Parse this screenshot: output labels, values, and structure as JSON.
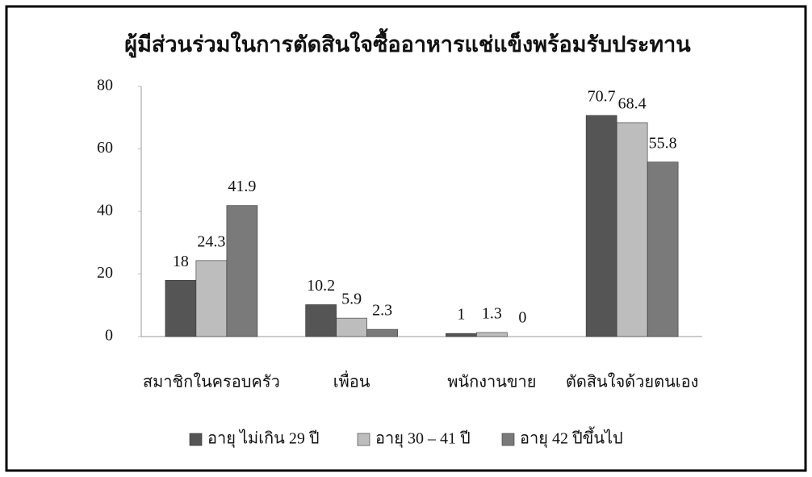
{
  "chart_data": {
    "type": "bar",
    "title": "ผู้มีส่วนร่วมในการตัดสินใจซื้ออาหารแช่แข็งพร้อมรับประทาน",
    "categories": [
      "สมาชิกในครอบครัว",
      "เพื่อน",
      "พนักงานขาย",
      "ตัดสินใจด้วยตนเอง"
    ],
    "series": [
      {
        "name": "อายุ ไม่เกิน 29 ปี",
        "color": "#555555",
        "values": [
          18,
          10.2,
          1,
          70.7
        ]
      },
      {
        "name": "อายุ 30 – 41 ปี",
        "color": "#bdbdbd",
        "values": [
          24.3,
          5.9,
          1.3,
          68.4
        ]
      },
      {
        "name": "อายุ 42 ปีขึ้นไป",
        "color": "#7a7a7a",
        "values": [
          41.9,
          2.3,
          0,
          55.8
        ]
      }
    ],
    "ylim": [
      0,
      80
    ],
    "yticks": [
      0,
      20,
      40,
      60,
      80
    ],
    "grid": false,
    "legend": "bottom"
  }
}
